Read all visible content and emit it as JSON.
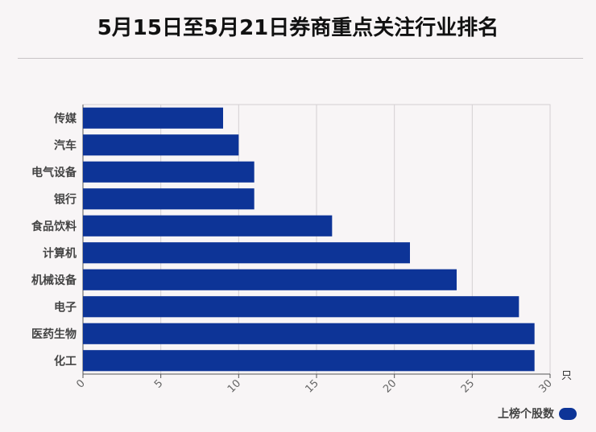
{
  "title": "5月15日至5月21日券商重点关注行业排名",
  "colors": {
    "bar": "#0d3497",
    "grid": "#d4d0d2",
    "axis": "#555555",
    "background": "#f8f5f6"
  },
  "chart_data": {
    "type": "bar",
    "orientation": "horizontal",
    "title": "5月15日至5月21日券商重点关注行业排名",
    "categories": [
      "传媒",
      "汽车",
      "电气设备",
      "银行",
      "食品饮料",
      "计算机",
      "机械设备",
      "电子",
      "医药生物",
      "化工"
    ],
    "series": [
      {
        "name": "上榜个股数",
        "values": [
          9,
          10,
          11,
          11,
          16,
          21,
          24,
          28,
          29,
          29
        ]
      }
    ],
    "xlim": [
      0,
      30
    ],
    "xticks": [
      "0",
      "5",
      "10",
      "15",
      "20",
      "25",
      "30"
    ],
    "xunit": "只",
    "grid": true,
    "legend_position": "bottom-right"
  }
}
